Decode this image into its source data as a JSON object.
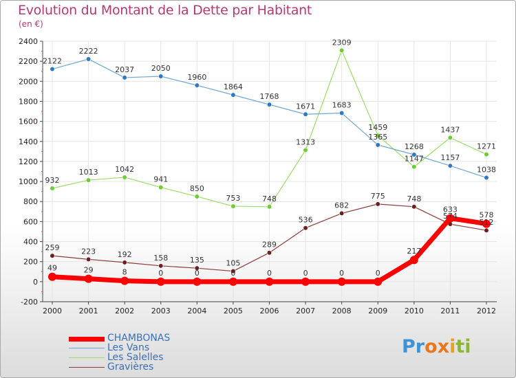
{
  "title": "Evolution du Montant de la Dette par Habitant",
  "unit": "(en €)",
  "logo": {
    "letters": [
      "P",
      "r",
      "o",
      "x",
      "i",
      "t",
      "i"
    ],
    "colors": [
      "#3d93d6",
      "#3d93d6",
      "#e7781c",
      "#e7781c",
      "#e7a11c",
      "#89b830",
      "#89b830"
    ]
  },
  "chart_data": {
    "type": "line",
    "title": "Evolution du Montant de la Dette par Habitant",
    "ylabel": "(en €)",
    "xlabel": "",
    "ylim": [
      -200,
      2400
    ],
    "yticks": [
      -200,
      0,
      200,
      400,
      600,
      800,
      1000,
      1200,
      1400,
      1600,
      1800,
      2000,
      2200,
      2400
    ],
    "x": [
      "2000",
      "2001",
      "2002",
      "2003",
      "2004",
      "2005",
      "2006",
      "2007",
      "2008",
      "2009",
      "2010",
      "2011",
      "2012"
    ],
    "grid": true,
    "legend_position": "bottom-left",
    "series": [
      {
        "name": "CHAMBONAS",
        "color": "#ff0000",
        "point_color": "#ff0000",
        "width": 7,
        "point_r": 6,
        "values": [
          49,
          29,
          8,
          0,
          0,
          0,
          0,
          0,
          0,
          0,
          217,
          633,
          578
        ],
        "labels": [
          "49",
          "29",
          "8",
          "0",
          "0",
          "0",
          "0",
          "0",
          "0",
          "0",
          "217",
          "633",
          "578"
        ]
      },
      {
        "name": "Les Vans",
        "color": "#6fa6d6",
        "point_color": "#2f78c4",
        "width": 1.2,
        "point_r": 3.3,
        "values": [
          2122,
          2222,
          2037,
          2050,
          1960,
          1864,
          1768,
          1671,
          1683,
          1365,
          1268,
          1157,
          1038
        ],
        "labels": [
          "2122",
          "2222",
          "2037",
          "2050",
          "1960",
          "1864",
          "1768",
          "1671",
          "1683",
          "1365",
          "1268",
          "1157",
          "1038"
        ]
      },
      {
        "name": "Les Salelles",
        "color": "#99dd66",
        "point_color": "#6fcc33",
        "width": 1.2,
        "point_r": 3.3,
        "values": [
          932,
          1013,
          1042,
          941,
          850,
          753,
          748,
          1313,
          2309,
          1459,
          1147,
          1437,
          1271
        ],
        "labels": [
          "932",
          "1013",
          "1042",
          "941",
          "850",
          "753",
          "748",
          "1313",
          "2309",
          "1459",
          "1147",
          "1437",
          "1271"
        ]
      },
      {
        "name": "Gravières",
        "color": "#8b3a3a",
        "point_color": "#6b1f1f",
        "width": 1.2,
        "point_r": 3.3,
        "values": [
          259,
          223,
          192,
          158,
          135,
          105,
          289,
          536,
          682,
          775,
          748,
          574,
          512
        ],
        "labels": [
          "259",
          "223",
          "192",
          "158",
          "135",
          "105",
          "289",
          "536",
          "682",
          "775",
          "748",
          "574",
          "512"
        ]
      }
    ]
  }
}
